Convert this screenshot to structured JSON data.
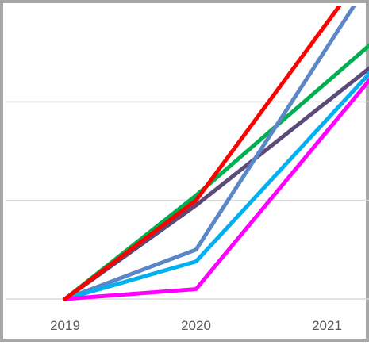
{
  "chart_data": {
    "type": "line",
    "title": "",
    "xlabel": "",
    "ylabel": "",
    "categories": [
      "2019",
      "2020",
      "2021"
    ],
    "ylim": [
      0,
      3
    ],
    "grid": true,
    "legend": "none",
    "series": [
      {
        "color": "#00b050",
        "values": [
          0,
          1.05,
          2.2
        ]
      },
      {
        "color": "#5b4a7a",
        "values": [
          0,
          0.95,
          2.0
        ]
      },
      {
        "color": "#5b87c7",
        "values": [
          0,
          0.5,
          2.55
        ]
      },
      {
        "color": "#00b0f0",
        "values": [
          0,
          0.38,
          1.82
        ]
      },
      {
        "color": "#ff00ff",
        "values": [
          0,
          0.1,
          1.7
        ]
      },
      {
        "color": "#ff0000",
        "values": [
          0,
          1.0,
          2.8
        ]
      }
    ]
  }
}
